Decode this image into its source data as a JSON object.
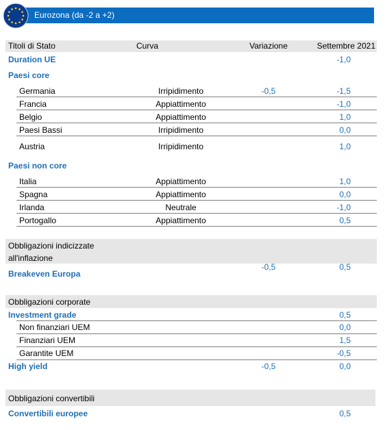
{
  "header": {
    "title": "Eurozona (da -2 a +2)"
  },
  "columns": {
    "titoli": "Titoli di Stato",
    "curva": "Curva",
    "variazione": "Variazione",
    "periodo": "Settembre 2021"
  },
  "duration": {
    "label": "Duration UE",
    "value": "-1,0"
  },
  "core": {
    "label": "Paesi core",
    "rows": [
      {
        "name": "Germania",
        "curva": "Irripidimento",
        "var": "-0,5",
        "value": "-1,5"
      },
      {
        "name": "Francia",
        "curva": "Appiattimento",
        "var": "",
        "value": "-1,0"
      },
      {
        "name": "Belgio",
        "curva": "Appiattimento",
        "var": "",
        "value": "1,0"
      },
      {
        "name": "Paesi Bassi",
        "curva": "Irripidimento",
        "var": "",
        "value": "0,0"
      },
      {
        "name": "Austria",
        "curva": "Irripidimento",
        "var": "",
        "value": "1,0"
      }
    ]
  },
  "noncore": {
    "label": "Paesi non core",
    "rows": [
      {
        "name": "Italia",
        "curva": "Appiattimento",
        "value": "1,0"
      },
      {
        "name": "Spagna",
        "curva": "Appiattimento",
        "value": "0,0"
      },
      {
        "name": "Irlanda",
        "curva": "Neutrale",
        "value": "-1,0"
      },
      {
        "name": "Portogallo",
        "curva": "Appiattimento",
        "value": "0,5"
      }
    ]
  },
  "inflazione": {
    "heading_line1": "Obbligazioni indicizzate",
    "heading_line2": "all'inflazione",
    "label": "Breakeven Europa",
    "var": "-0,5",
    "value": "0,5"
  },
  "corporate": {
    "heading": "Obbligazioni corporate",
    "ig_label": "Investment grade",
    "ig_value": "0,5",
    "rows": [
      {
        "name": "Non finanziari UEM",
        "value": "0,0"
      },
      {
        "name": "Finanziari UEM",
        "value": "1,5"
      },
      {
        "name": "Garantite UEM",
        "value": "-0,5"
      }
    ],
    "hy_label": "High yield",
    "hy_var": "-0,5",
    "hy_value": "0,0"
  },
  "convertibili": {
    "heading": "Obbligazioni convertibili",
    "label": "Convertibili europee",
    "value": "0,5"
  },
  "colors": {
    "banner": "#0b6cc0",
    "accent": "#1f6fb4",
    "flag": "#0a3a8c",
    "stars": "#ffd700"
  }
}
